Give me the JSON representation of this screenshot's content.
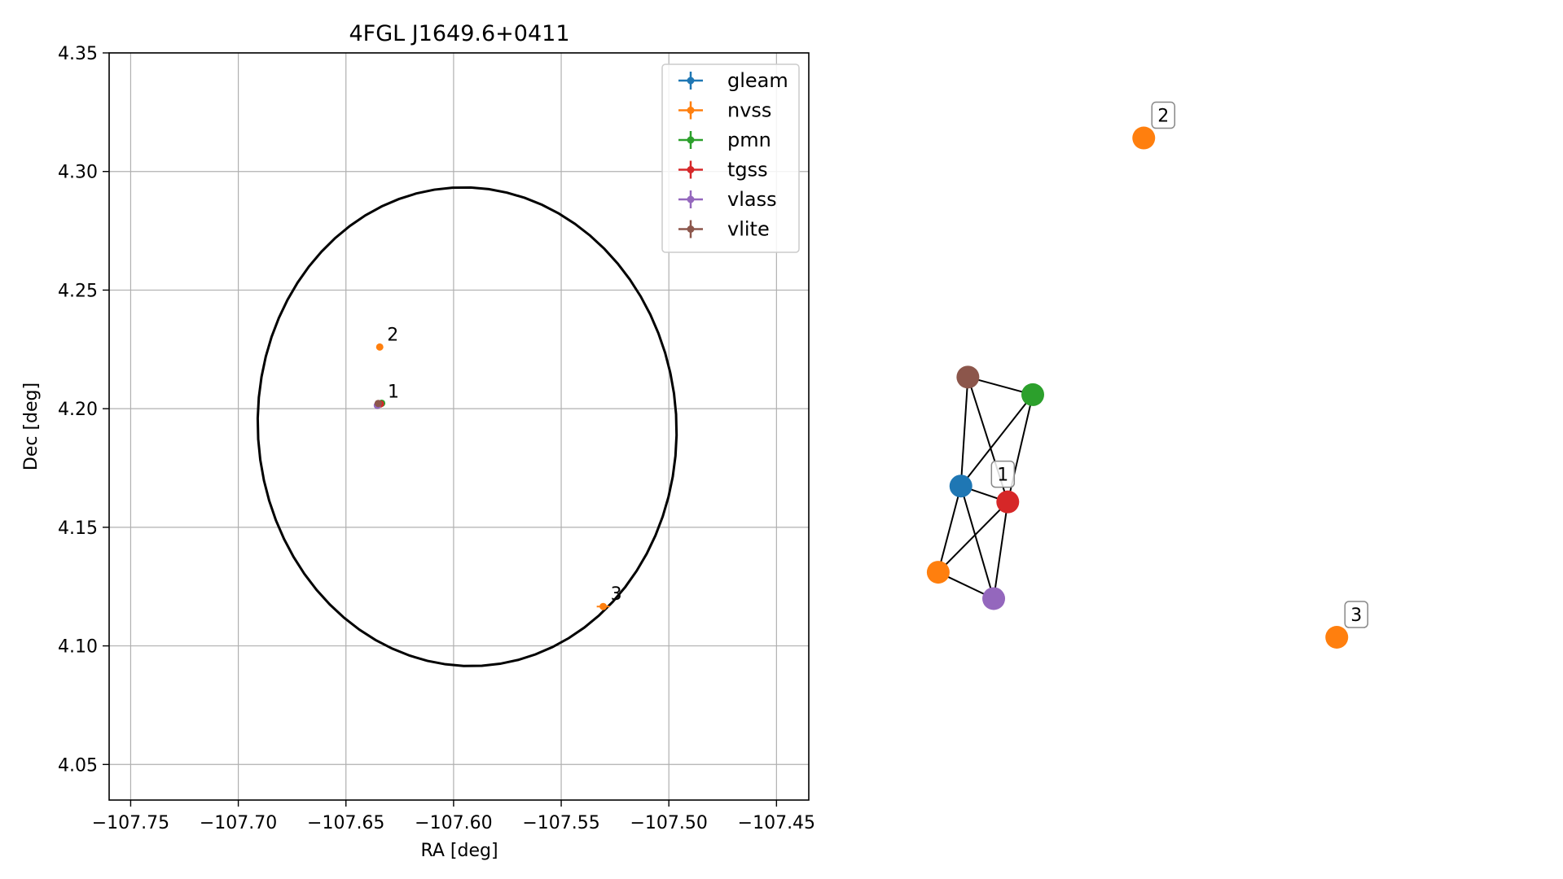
{
  "chart_data": [
    {
      "type": "scatter",
      "title": "4FGL J1649.6+0411",
      "xlabel": "RA [deg]",
      "ylabel": "Dec [deg]",
      "xlim": [
        -107.76,
        -107.435
      ],
      "ylim": [
        4.035,
        4.35
      ],
      "xticks": [
        -107.75,
        -107.7,
        -107.65,
        -107.6,
        -107.55,
        -107.5,
        -107.45
      ],
      "xtick_labels": [
        "−107.75",
        "−107.70",
        "−107.65",
        "−107.60",
        "−107.55",
        "−107.50",
        "−107.45"
      ],
      "yticks": [
        4.05,
        4.1,
        4.15,
        4.2,
        4.25,
        4.3,
        4.35
      ],
      "ytick_labels": [
        "4.05",
        "4.10",
        "4.15",
        "4.20",
        "4.25",
        "4.30",
        "4.35"
      ],
      "grid": true,
      "legend_position": "top-right",
      "ellipse": {
        "center": [
          -107.5937,
          4.1924
        ],
        "semi_axes": [
          0.09707,
          0.10113
        ],
        "rotation_deg": 13.5,
        "color": "#000000"
      },
      "series": [
        {
          "name": "gleam",
          "color": "#1f77b4",
          "points": [
            {
              "x": -107.6352,
              "y": 4.2016,
              "xerr": 0.0005,
              "yerr": 0.0005
            }
          ]
        },
        {
          "name": "nvss",
          "color": "#ff7f0e",
          "points": [
            {
              "x": -107.6353,
              "y": 4.2015,
              "xerr": 0.0004,
              "yerr": 0.0004
            },
            {
              "x": -107.6343,
              "y": 4.226,
              "xerr": 0.0004,
              "yerr": 0.0004
            },
            {
              "x": -107.5305,
              "y": 4.1166,
              "xerr": 0.003,
              "yerr": 0.0007
            }
          ]
        },
        {
          "name": "pmn",
          "color": "#2ca02c",
          "points": [
            {
              "x": -107.6334,
              "y": 4.2023,
              "xerr": 0.0006,
              "yerr": 0.0006
            }
          ]
        },
        {
          "name": "tgss",
          "color": "#d62728",
          "points": [
            {
              "x": -107.634,
              "y": 4.202,
              "xerr": 0.0004,
              "yerr": 0.0004
            }
          ]
        },
        {
          "name": "vlass",
          "color": "#9467bd",
          "points": [
            {
              "x": -107.6354,
              "y": 4.2014,
              "xerr": 0.0002,
              "yerr": 0.0002
            }
          ]
        },
        {
          "name": "vlite",
          "color": "#8c564b",
          "points": [
            {
              "x": -107.635,
              "y": 4.2022,
              "xerr": 0.0004,
              "yerr": 0.0004
            }
          ]
        }
      ],
      "annotations": [
        {
          "text": "1",
          "x": -107.634,
          "y": 4.202
        },
        {
          "text": "2",
          "x": -107.6343,
          "y": 4.226
        },
        {
          "text": "3",
          "x": -107.5305,
          "y": 4.1166
        }
      ]
    },
    {
      "type": "network",
      "nodes": [
        {
          "id": "gleam",
          "color": "#1f77b4",
          "x": 0.13,
          "y": 0.553
        },
        {
          "id": "nvss-1",
          "color": "#ff7f0e",
          "x": 0.101,
          "y": 0.651
        },
        {
          "id": "pmn",
          "color": "#2ca02c",
          "x": 0.222,
          "y": 0.449
        },
        {
          "id": "tgss",
          "color": "#d62728",
          "x": 0.19,
          "y": 0.571
        },
        {
          "id": "vlass",
          "color": "#9467bd",
          "x": 0.172,
          "y": 0.681
        },
        {
          "id": "vlite",
          "color": "#8c564b",
          "x": 0.139,
          "y": 0.429
        },
        {
          "id": "nvss-2",
          "color": "#ff7f0e",
          "x": 0.364,
          "y": 0.157
        },
        {
          "id": "nvss-3",
          "color": "#ff7f0e",
          "x": 0.611,
          "y": 0.725
        }
      ],
      "edges": [
        [
          "vlite",
          "pmn"
        ],
        [
          "vlite",
          "gleam"
        ],
        [
          "vlite",
          "tgss"
        ],
        [
          "pmn",
          "gleam"
        ],
        [
          "pmn",
          "tgss"
        ],
        [
          "gleam",
          "tgss"
        ],
        [
          "gleam",
          "nvss-1"
        ],
        [
          "gleam",
          "vlass"
        ],
        [
          "tgss",
          "nvss-1"
        ],
        [
          "tgss",
          "vlass"
        ],
        [
          "nvss-1",
          "vlass"
        ]
      ],
      "labels": [
        {
          "text": "1",
          "node": "tgss"
        },
        {
          "text": "2",
          "node": "nvss-2"
        },
        {
          "text": "3",
          "node": "nvss-3"
        }
      ]
    }
  ]
}
